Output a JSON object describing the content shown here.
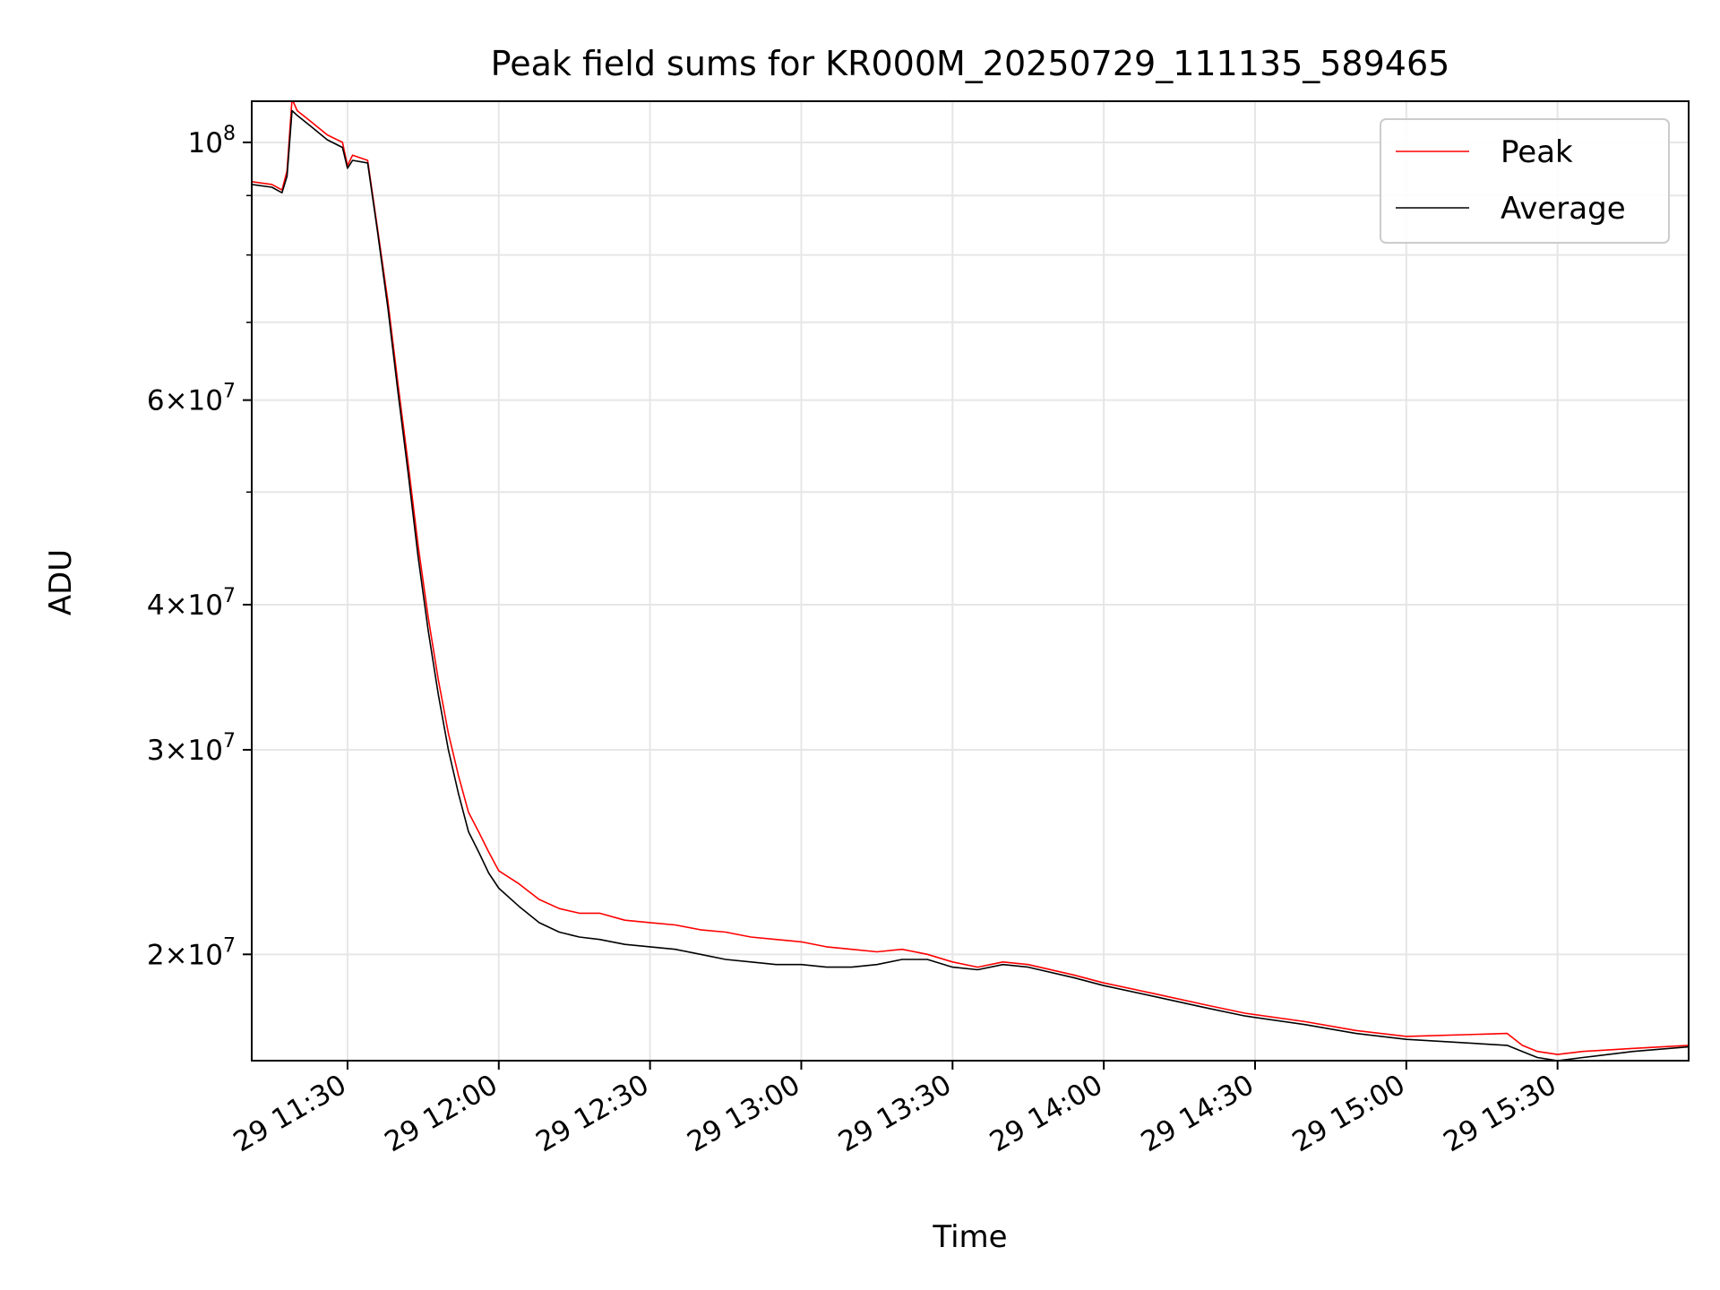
{
  "chart_data": {
    "type": "line",
    "title": "Peak field sums for KR000M_20250729_111135_589465",
    "xlabel": "Time",
    "ylabel": "ADU",
    "yscale": "log",
    "ylim": [
      16200000,
      108500000
    ],
    "xlim": [
      "2025-07-29T11:11",
      "2025-07-29T15:56"
    ],
    "grid": true,
    "legend_position": "top-right",
    "x_ticks": [
      {
        "t": "2025-07-29T11:30",
        "label": "29 11:30"
      },
      {
        "t": "2025-07-29T12:00",
        "label": "29 12:00"
      },
      {
        "t": "2025-07-29T12:30",
        "label": "29 12:30"
      },
      {
        "t": "2025-07-29T13:00",
        "label": "29 13:00"
      },
      {
        "t": "2025-07-29T13:30",
        "label": "29 13:30"
      },
      {
        "t": "2025-07-29T14:00",
        "label": "29 14:00"
      },
      {
        "t": "2025-07-29T14:30",
        "label": "29 14:30"
      },
      {
        "t": "2025-07-29T15:00",
        "label": "29 15:00"
      },
      {
        "t": "2025-07-29T15:30",
        "label": "29 15:30"
      }
    ],
    "y_ticks": [
      {
        "value": 20000000,
        "mantissa": "2",
        "exp": "7"
      },
      {
        "value": 30000000,
        "mantissa": "3",
        "exp": "7"
      },
      {
        "value": 40000000,
        "mantissa": "4",
        "exp": "7"
      },
      {
        "value": 60000000,
        "mantissa": "6",
        "exp": "7"
      },
      {
        "value": 100000000,
        "mantissa": "",
        "exp": "8"
      }
    ],
    "y_minor_ticks": [
      50000000,
      70000000,
      80000000,
      90000000
    ],
    "series": [
      {
        "name": "Peak",
        "color": "#ff0000",
        "points": [
          [
            "2025-07-29T11:11",
            92500000
          ],
          [
            "2025-07-29T11:15",
            92000000
          ],
          [
            "2025-07-29T11:17",
            91000000
          ],
          [
            "2025-07-29T11:18",
            94500000
          ],
          [
            "2025-07-29T11:19",
            109000000
          ],
          [
            "2025-07-29T11:20",
            106500000
          ],
          [
            "2025-07-29T11:23",
            104000000
          ],
          [
            "2025-07-29T11:26",
            101500000
          ],
          [
            "2025-07-29T11:29",
            100000000
          ],
          [
            "2025-07-29T11:30",
            95500000
          ],
          [
            "2025-07-29T11:31",
            97500000
          ],
          [
            "2025-07-29T11:34",
            96500000
          ],
          [
            "2025-07-29T11:36",
            84000000
          ],
          [
            "2025-07-29T11:38",
            73000000
          ],
          [
            "2025-07-29T11:40",
            62000000
          ],
          [
            "2025-07-29T11:42",
            53000000
          ],
          [
            "2025-07-29T11:44",
            45000000
          ],
          [
            "2025-07-29T11:46",
            39000000
          ],
          [
            "2025-07-29T11:48",
            34500000
          ],
          [
            "2025-07-29T11:50",
            31000000
          ],
          [
            "2025-07-29T11:52",
            28500000
          ],
          [
            "2025-07-29T11:54",
            26500000
          ],
          [
            "2025-07-29T11:56",
            25500000
          ],
          [
            "2025-07-29T11:58",
            24500000
          ],
          [
            "2025-07-29T12:00",
            23600000
          ],
          [
            "2025-07-29T12:04",
            23000000
          ],
          [
            "2025-07-29T12:08",
            22300000
          ],
          [
            "2025-07-29T12:12",
            21900000
          ],
          [
            "2025-07-29T12:16",
            21700000
          ],
          [
            "2025-07-29T12:20",
            21700000
          ],
          [
            "2025-07-29T12:25",
            21400000
          ],
          [
            "2025-07-29T12:30",
            21300000
          ],
          [
            "2025-07-29T12:35",
            21200000
          ],
          [
            "2025-07-29T12:40",
            21000000
          ],
          [
            "2025-07-29T12:45",
            20900000
          ],
          [
            "2025-07-29T12:50",
            20700000
          ],
          [
            "2025-07-29T12:55",
            20600000
          ],
          [
            "2025-07-29T13:00",
            20500000
          ],
          [
            "2025-07-29T13:05",
            20300000
          ],
          [
            "2025-07-29T13:10",
            20200000
          ],
          [
            "2025-07-29T13:15",
            20100000
          ],
          [
            "2025-07-29T13:20",
            20200000
          ],
          [
            "2025-07-29T13:25",
            20000000
          ],
          [
            "2025-07-29T13:30",
            19700000
          ],
          [
            "2025-07-29T13:35",
            19500000
          ],
          [
            "2025-07-29T13:40",
            19700000
          ],
          [
            "2025-07-29T13:45",
            19600000
          ],
          [
            "2025-07-29T13:54",
            19200000
          ],
          [
            "2025-07-29T14:00",
            18900000
          ],
          [
            "2025-07-29T14:10",
            18500000
          ],
          [
            "2025-07-29T14:20",
            18100000
          ],
          [
            "2025-07-29T14:28",
            17800000
          ],
          [
            "2025-07-29T14:40",
            17500000
          ],
          [
            "2025-07-29T14:50",
            17200000
          ],
          [
            "2025-07-29T15:00",
            17000000
          ],
          [
            "2025-07-29T15:20",
            17100000
          ],
          [
            "2025-07-29T15:23",
            16700000
          ],
          [
            "2025-07-29T15:26",
            16500000
          ],
          [
            "2025-07-29T15:30",
            16400000
          ],
          [
            "2025-07-29T15:35",
            16500000
          ],
          [
            "2025-07-29T15:45",
            16600000
          ],
          [
            "2025-07-29T15:56",
            16700000
          ]
        ]
      },
      {
        "name": "Average",
        "color": "#000000",
        "points": [
          [
            "2025-07-29T11:11",
            92000000
          ],
          [
            "2025-07-29T11:15",
            91500000
          ],
          [
            "2025-07-29T11:17",
            90500000
          ],
          [
            "2025-07-29T11:18",
            93500000
          ],
          [
            "2025-07-29T11:19",
            106500000
          ],
          [
            "2025-07-29T11:20",
            105500000
          ],
          [
            "2025-07-29T11:23",
            103000000
          ],
          [
            "2025-07-29T11:26",
            100500000
          ],
          [
            "2025-07-29T11:29",
            99000000
          ],
          [
            "2025-07-29T11:30",
            95000000
          ],
          [
            "2025-07-29T11:31",
            96500000
          ],
          [
            "2025-07-29T11:34",
            96000000
          ],
          [
            "2025-07-29T11:36",
            83500000
          ],
          [
            "2025-07-29T11:38",
            72000000
          ],
          [
            "2025-07-29T11:40",
            61000000
          ],
          [
            "2025-07-29T11:42",
            52000000
          ],
          [
            "2025-07-29T11:44",
            44000000
          ],
          [
            "2025-07-29T11:46",
            38000000
          ],
          [
            "2025-07-29T11:48",
            33500000
          ],
          [
            "2025-07-29T11:50",
            30000000
          ],
          [
            "2025-07-29T11:52",
            27500000
          ],
          [
            "2025-07-29T11:54",
            25500000
          ],
          [
            "2025-07-29T11:56",
            24500000
          ],
          [
            "2025-07-29T11:58",
            23500000
          ],
          [
            "2025-07-29T12:00",
            22800000
          ],
          [
            "2025-07-29T12:04",
            22000000
          ],
          [
            "2025-07-29T12:08",
            21300000
          ],
          [
            "2025-07-29T12:12",
            20900000
          ],
          [
            "2025-07-29T12:16",
            20700000
          ],
          [
            "2025-07-29T12:20",
            20600000
          ],
          [
            "2025-07-29T12:25",
            20400000
          ],
          [
            "2025-07-29T12:30",
            20300000
          ],
          [
            "2025-07-29T12:35",
            20200000
          ],
          [
            "2025-07-29T12:40",
            20000000
          ],
          [
            "2025-07-29T12:45",
            19800000
          ],
          [
            "2025-07-29T12:50",
            19700000
          ],
          [
            "2025-07-29T12:55",
            19600000
          ],
          [
            "2025-07-29T13:00",
            19600000
          ],
          [
            "2025-07-29T13:05",
            19500000
          ],
          [
            "2025-07-29T13:10",
            19500000
          ],
          [
            "2025-07-29T13:15",
            19600000
          ],
          [
            "2025-07-29T13:20",
            19800000
          ],
          [
            "2025-07-29T13:25",
            19800000
          ],
          [
            "2025-07-29T13:30",
            19500000
          ],
          [
            "2025-07-29T13:35",
            19400000
          ],
          [
            "2025-07-29T13:40",
            19600000
          ],
          [
            "2025-07-29T13:45",
            19500000
          ],
          [
            "2025-07-29T13:54",
            19100000
          ],
          [
            "2025-07-29T14:00",
            18800000
          ],
          [
            "2025-07-29T14:10",
            18400000
          ],
          [
            "2025-07-29T14:20",
            18000000
          ],
          [
            "2025-07-29T14:28",
            17700000
          ],
          [
            "2025-07-29T14:40",
            17400000
          ],
          [
            "2025-07-29T14:50",
            17100000
          ],
          [
            "2025-07-29T15:00",
            16900000
          ],
          [
            "2025-07-29T15:20",
            16700000
          ],
          [
            "2025-07-29T15:23",
            16500000
          ],
          [
            "2025-07-29T15:26",
            16300000
          ],
          [
            "2025-07-29T15:30",
            16200000
          ],
          [
            "2025-07-29T15:35",
            16300000
          ],
          [
            "2025-07-29T15:45",
            16500000
          ],
          [
            "2025-07-29T15:56",
            16650000
          ]
        ]
      }
    ]
  }
}
